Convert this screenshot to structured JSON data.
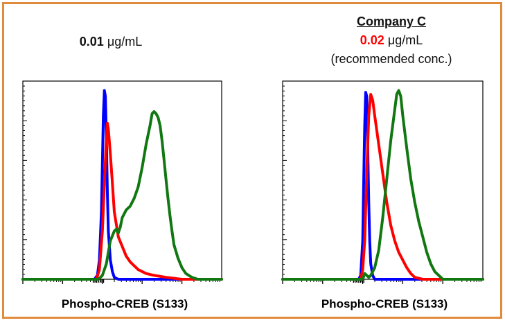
{
  "colors": {
    "frame": "#E08A3C",
    "blue_series": "#0000FF",
    "red_series": "#FF0000",
    "green_series": "#117711",
    "highlight_text": "#FF0000"
  },
  "left_panel": {
    "title_bold": "0.01",
    "title_unit": " μg/mL",
    "xlabel": "Phospho-CREB (S133)"
  },
  "right_panel": {
    "company": "Company C",
    "title_bold": "0.02",
    "title_unit": " μg/mL",
    "title_note": "(recommended conc.)",
    "xlabel": "Phospho-CREB (S133)"
  },
  "chart_data": [
    {
      "type": "line",
      "title": "0.01 μg/mL",
      "xlabel": "Phospho-CREB (S133)",
      "ylabel": "",
      "xlim": [
        0,
        1
      ],
      "ylim": [
        0,
        1
      ],
      "x_scale": "log (fluorescence intensity, unlabeled decades)",
      "series": [
        {
          "color": "#0000FF",
          "points": [
            [
              0.0,
              0.0
            ],
            [
              0.36,
              0.0
            ],
            [
              0.375,
              0.02
            ],
            [
              0.385,
              0.1
            ],
            [
              0.395,
              0.35
            ],
            [
              0.4,
              0.6
            ],
            [
              0.405,
              0.85
            ],
            [
              0.41,
              0.98
            ],
            [
              0.415,
              0.95
            ],
            [
              0.42,
              0.75
            ],
            [
              0.425,
              0.45
            ],
            [
              0.43,
              0.25
            ],
            [
              0.44,
              0.1
            ],
            [
              0.45,
              0.04
            ],
            [
              0.46,
              0.01
            ],
            [
              0.48,
              0.0
            ],
            [
              1.0,
              0.0
            ]
          ]
        },
        {
          "color": "#FF0000",
          "points": [
            [
              0.0,
              0.0
            ],
            [
              0.37,
              0.0
            ],
            [
              0.385,
              0.05
            ],
            [
              0.4,
              0.25
            ],
            [
              0.41,
              0.5
            ],
            [
              0.42,
              0.72
            ],
            [
              0.425,
              0.81
            ],
            [
              0.43,
              0.78
            ],
            [
              0.44,
              0.65
            ],
            [
              0.45,
              0.5
            ],
            [
              0.46,
              0.35
            ],
            [
              0.48,
              0.22
            ],
            [
              0.5,
              0.17
            ],
            [
              0.52,
              0.12
            ],
            [
              0.54,
              0.09
            ],
            [
              0.56,
              0.07
            ],
            [
              0.58,
              0.05
            ],
            [
              0.62,
              0.03
            ],
            [
              0.66,
              0.02
            ],
            [
              0.72,
              0.01
            ],
            [
              0.8,
              0.0
            ],
            [
              1.0,
              0.0
            ]
          ]
        },
        {
          "color": "#117711",
          "points": [
            [
              0.0,
              0.0
            ],
            [
              0.38,
              0.0
            ],
            [
              0.4,
              0.02
            ],
            [
              0.42,
              0.08
            ],
            [
              0.44,
              0.2
            ],
            [
              0.46,
              0.25
            ],
            [
              0.47,
              0.26
            ],
            [
              0.48,
              0.24
            ],
            [
              0.49,
              0.27
            ],
            [
              0.5,
              0.32
            ],
            [
              0.52,
              0.36
            ],
            [
              0.54,
              0.38
            ],
            [
              0.56,
              0.42
            ],
            [
              0.58,
              0.48
            ],
            [
              0.6,
              0.58
            ],
            [
              0.62,
              0.7
            ],
            [
              0.64,
              0.8
            ],
            [
              0.65,
              0.86
            ],
            [
              0.66,
              0.87
            ],
            [
              0.67,
              0.86
            ],
            [
              0.68,
              0.84
            ],
            [
              0.69,
              0.8
            ],
            [
              0.7,
              0.72
            ],
            [
              0.71,
              0.62
            ],
            [
              0.72,
              0.52
            ],
            [
              0.73,
              0.42
            ],
            [
              0.74,
              0.33
            ],
            [
              0.75,
              0.25
            ],
            [
              0.76,
              0.18
            ],
            [
              0.78,
              0.11
            ],
            [
              0.8,
              0.06
            ],
            [
              0.82,
              0.03
            ],
            [
              0.85,
              0.01
            ],
            [
              0.88,
              0.0
            ],
            [
              1.0,
              0.0
            ]
          ]
        }
      ]
    },
    {
      "type": "line",
      "title": "Company C 0.02 μg/mL (recommended conc.)",
      "xlabel": "Phospho-CREB (S133)",
      "ylabel": "",
      "xlim": [
        0,
        1
      ],
      "ylim": [
        0,
        1
      ],
      "x_scale": "log (fluorescence intensity, unlabeled decades)",
      "series": [
        {
          "color": "#0000FF",
          "points": [
            [
              0.0,
              0.0
            ],
            [
              0.38,
              0.0
            ],
            [
              0.39,
              0.02
            ],
            [
              0.4,
              0.2
            ],
            [
              0.405,
              0.5
            ],
            [
              0.41,
              0.8
            ],
            [
              0.415,
              0.97
            ],
            [
              0.42,
              0.95
            ],
            [
              0.425,
              0.7
            ],
            [
              0.43,
              0.4
            ],
            [
              0.435,
              0.2
            ],
            [
              0.44,
              0.08
            ],
            [
              0.45,
              0.02
            ],
            [
              0.46,
              0.0
            ],
            [
              1.0,
              0.0
            ]
          ]
        },
        {
          "color": "#FF0000",
          "points": [
            [
              0.0,
              0.0
            ],
            [
              0.39,
              0.0
            ],
            [
              0.4,
              0.05
            ],
            [
              0.41,
              0.2
            ],
            [
              0.42,
              0.55
            ],
            [
              0.43,
              0.85
            ],
            [
              0.44,
              0.96
            ],
            [
              0.45,
              0.93
            ],
            [
              0.46,
              0.85
            ],
            [
              0.48,
              0.7
            ],
            [
              0.5,
              0.55
            ],
            [
              0.52,
              0.4
            ],
            [
              0.54,
              0.28
            ],
            [
              0.56,
              0.2
            ],
            [
              0.58,
              0.14
            ],
            [
              0.6,
              0.1
            ],
            [
              0.62,
              0.06
            ],
            [
              0.64,
              0.03
            ],
            [
              0.66,
              0.01
            ],
            [
              0.7,
              0.0
            ],
            [
              1.0,
              0.0
            ]
          ]
        },
        {
          "color": "#117711",
          "points": [
            [
              0.0,
              0.0
            ],
            [
              0.4,
              0.0
            ],
            [
              0.41,
              0.03
            ],
            [
              0.42,
              0.02
            ],
            [
              0.43,
              0.01
            ],
            [
              0.44,
              0.02
            ],
            [
              0.46,
              0.06
            ],
            [
              0.48,
              0.15
            ],
            [
              0.5,
              0.32
            ],
            [
              0.52,
              0.52
            ],
            [
              0.54,
              0.72
            ],
            [
              0.56,
              0.88
            ],
            [
              0.57,
              0.96
            ],
            [
              0.58,
              0.98
            ],
            [
              0.59,
              0.95
            ],
            [
              0.6,
              0.85
            ],
            [
              0.62,
              0.68
            ],
            [
              0.64,
              0.52
            ],
            [
              0.66,
              0.4
            ],
            [
              0.68,
              0.3
            ],
            [
              0.7,
              0.22
            ],
            [
              0.72,
              0.14
            ],
            [
              0.74,
              0.08
            ],
            [
              0.76,
              0.04
            ],
            [
              0.78,
              0.02
            ],
            [
              0.8,
              0.0
            ],
            [
              1.0,
              0.0
            ]
          ]
        }
      ]
    }
  ]
}
